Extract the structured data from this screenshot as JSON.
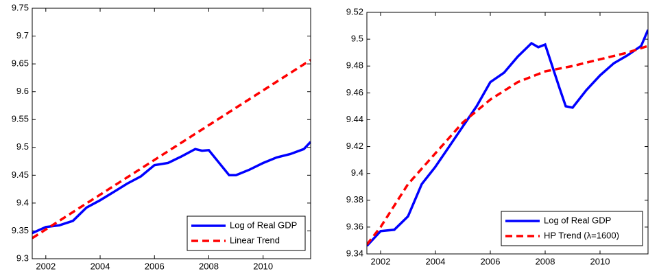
{
  "chart_data": [
    {
      "type": "line",
      "xlim": [
        2001.5,
        2011.75
      ],
      "xticks": [
        2002,
        2004,
        2006,
        2008,
        2010
      ],
      "ylim": [
        9.3,
        9.75
      ],
      "yticks": [
        9.3,
        9.35,
        9.4,
        9.45,
        9.5,
        9.55,
        9.6,
        9.65,
        9.7,
        9.75
      ],
      "legend": "lower right",
      "series": [
        {
          "name": "Log of Real GDP",
          "color": "#0000ff",
          "style": "solid",
          "x": [
            2001.5,
            2002,
            2002.5,
            2003,
            2003.5,
            2004,
            2004.5,
            2005,
            2005.5,
            2006,
            2006.5,
            2007,
            2007.5,
            2007.75,
            2008,
            2008.5,
            2008.75,
            2009,
            2009.5,
            2010,
            2010.5,
            2011,
            2011.5,
            2011.75
          ],
          "values": [
            9.346,
            9.357,
            9.36,
            9.368,
            9.392,
            9.405,
            9.42,
            9.435,
            9.448,
            9.468,
            9.472,
            9.484,
            9.497,
            9.494,
            9.495,
            9.465,
            9.45,
            9.45,
            9.46,
            9.472,
            9.482,
            9.488,
            9.497,
            9.51
          ]
        },
        {
          "name": "Linear Trend",
          "color": "#ff0000",
          "style": "dashed",
          "x": [
            2001.5,
            2011.75
          ],
          "values": [
            9.337,
            9.657
          ]
        }
      ]
    },
    {
      "type": "line",
      "xlim": [
        2001.5,
        2011.75
      ],
      "xticks": [
        2002,
        2004,
        2006,
        2008,
        2010
      ],
      "ylim": [
        9.34,
        9.52
      ],
      "yticks": [
        9.34,
        9.36,
        9.38,
        9.4,
        9.42,
        9.44,
        9.46,
        9.48,
        9.5,
        9.52
      ],
      "legend": "lower right",
      "series": [
        {
          "name": "Log of Real GDP",
          "color": "#0000ff",
          "style": "solid",
          "x": [
            2001.5,
            2002,
            2002.5,
            2003,
            2003.5,
            2004,
            2004.5,
            2005,
            2005.5,
            2006,
            2006.5,
            2007,
            2007.5,
            2007.75,
            2008,
            2008.5,
            2008.75,
            2009,
            2009.5,
            2010,
            2010.5,
            2011,
            2011.5,
            2011.75
          ],
          "values": [
            9.346,
            9.357,
            9.358,
            9.368,
            9.392,
            9.405,
            9.42,
            9.435,
            9.45,
            9.468,
            9.475,
            9.487,
            9.497,
            9.494,
            9.496,
            9.465,
            9.45,
            9.449,
            9.462,
            9.473,
            9.482,
            9.488,
            9.495,
            9.507
          ]
        },
        {
          "name": "HP Trend (λ=1600)",
          "color": "#ff0000",
          "style": "dashed",
          "x": [
            2001.5,
            2002,
            2003,
            2004,
            2005,
            2006,
            2007,
            2008,
            2009,
            2010,
            2011,
            2011.75
          ],
          "values": [
            9.347,
            9.36,
            9.392,
            9.415,
            9.438,
            9.455,
            9.468,
            9.476,
            9.48,
            9.485,
            9.49,
            9.495
          ]
        }
      ]
    }
  ]
}
